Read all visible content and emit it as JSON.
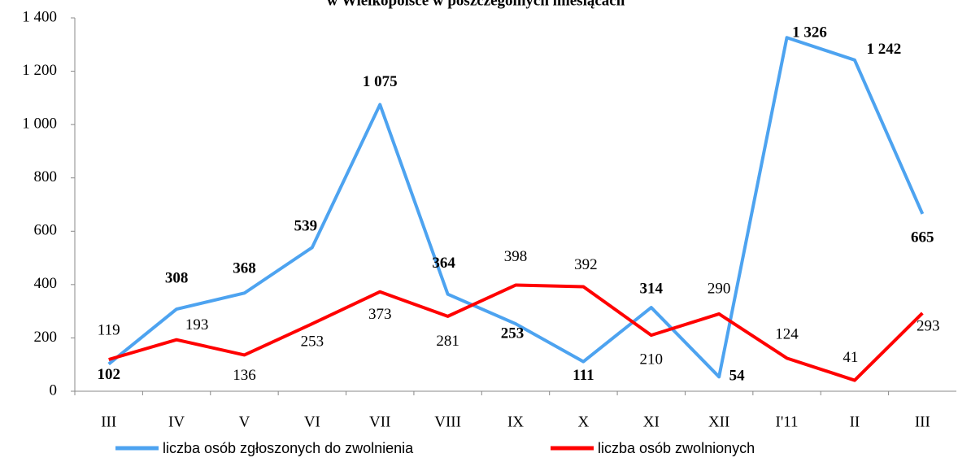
{
  "chart_data": {
    "type": "line",
    "title": "w Wielkopolsce w poszczególnych miesiącach",
    "categories": [
      "III",
      "IV",
      "V",
      "VI",
      "VII",
      "VIII",
      "IX",
      "X",
      "XI",
      "XII",
      "I'11",
      "II",
      "III"
    ],
    "series": [
      {
        "name": "liczba osób zgłoszonych do zwolnienia",
        "color": "#4da3f0",
        "values": [
          102,
          308,
          368,
          539,
          1075,
          364,
          253,
          111,
          314,
          54,
          1326,
          1242,
          665
        ],
        "value_labels": [
          "102",
          "308",
          "368",
          "539",
          "1 075",
          "364",
          "253",
          "111",
          "314",
          "54",
          "1 326",
          "1 242",
          "665"
        ]
      },
      {
        "name": "liczba osób zwolnionych",
        "color": "#ff0000",
        "values": [
          119,
          193,
          136,
          253,
          373,
          281,
          398,
          392,
          210,
          290,
          124,
          41,
          293
        ]
      }
    ],
    "ylim": [
      0,
      1400
    ],
    "yticks": [
      0,
      200,
      400,
      600,
      800,
      {
        "value": 1000,
        "label": "1 000"
      },
      {
        "value": 1200,
        "label": "1 200"
      },
      {
        "value": 1400,
        "label": "1 400"
      }
    ],
    "legend": "bottom"
  }
}
